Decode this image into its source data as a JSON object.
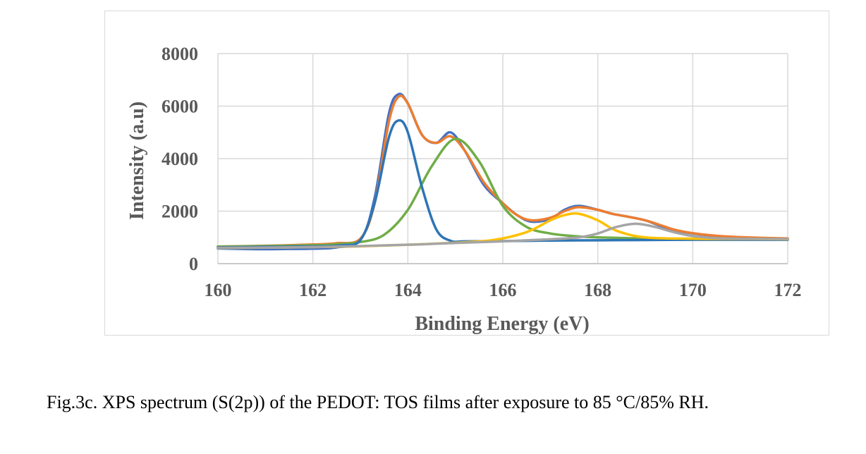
{
  "chart_data": {
    "type": "line",
    "xlabel": "Binding Energy (eV)",
    "ylabel": "Intensity (a.u)",
    "xlim": [
      160,
      172
    ],
    "ylim": [
      0,
      8000
    ],
    "x_ticks": [
      160,
      162,
      164,
      166,
      168,
      170,
      172
    ],
    "y_ticks": [
      0,
      2000,
      4000,
      6000,
      8000
    ],
    "grid": true,
    "legend": "none",
    "series": [
      {
        "color": "#4472c4",
        "x": [
          160,
          160.5,
          161,
          161.5,
          162,
          162.5,
          163,
          163.3,
          163.6,
          163.8,
          164.0,
          164.3,
          164.6,
          164.9,
          165.2,
          165.6,
          166.0,
          166.3,
          166.6,
          167.0,
          167.3,
          167.6,
          168.0,
          168.3,
          168.6,
          169.0,
          169.3,
          169.6,
          170.0,
          170.5,
          171,
          171.5,
          172
        ],
        "y": [
          580,
          560,
          550,
          560,
          570,
          620,
          900,
          2500,
          5700,
          6450,
          6100,
          4900,
          4600,
          5000,
          4300,
          3000,
          2300,
          1850,
          1600,
          1700,
          2050,
          2200,
          2050,
          1900,
          1800,
          1650,
          1450,
          1280,
          1150,
          1050,
          1000,
          970,
          950
        ]
      },
      {
        "color": "#ed7d31",
        "x": [
          160,
          161,
          162,
          162.5,
          163,
          163.3,
          163.6,
          163.8,
          164.0,
          164.3,
          164.6,
          164.9,
          165.2,
          165.6,
          166.0,
          166.3,
          166.6,
          167.0,
          167.3,
          167.6,
          168.0,
          168.3,
          168.6,
          169.0,
          169.3,
          169.6,
          170.0,
          170.5,
          171,
          171.5,
          172
        ],
        "y": [
          650,
          680,
          730,
          780,
          950,
          2300,
          5400,
          6350,
          6100,
          4900,
          4600,
          4850,
          4300,
          3100,
          2300,
          1850,
          1650,
          1750,
          2000,
          2150,
          2050,
          1900,
          1800,
          1650,
          1480,
          1300,
          1160,
          1060,
          1010,
          980,
          960
        ]
      },
      {
        "color": "#70ad47",
        "x": [
          160,
          161,
          162,
          162.5,
          163,
          163.5,
          164.0,
          164.5,
          165.0,
          165.5,
          166.0,
          166.5,
          167.0,
          167.5,
          168.0,
          169,
          170,
          171,
          172
        ],
        "y": [
          650,
          670,
          700,
          740,
          820,
          1100,
          2050,
          3700,
          4750,
          3900,
          2200,
          1400,
          1150,
          1050,
          1000,
          960,
          940,
          930,
          920
        ]
      },
      {
        "color": "#2e75b6",
        "x": [
          160,
          161,
          162,
          162.6,
          163.0,
          163.3,
          163.6,
          163.8,
          164.0,
          164.3,
          164.6,
          164.9,
          165.2,
          166,
          167,
          168,
          169,
          170,
          171,
          172
        ],
        "y": [
          620,
          640,
          660,
          700,
          900,
          2300,
          4800,
          5450,
          5000,
          2900,
          1300,
          870,
          850,
          860,
          880,
          890,
          900,
          910,
          910,
          910
        ]
      },
      {
        "color": "#ffc000",
        "x": [
          160,
          161,
          162,
          163,
          164,
          165,
          165.8,
          166.5,
          167.0,
          167.3,
          167.6,
          168.0,
          168.4,
          169,
          170,
          171,
          172
        ],
        "y": [
          600,
          610,
          630,
          660,
          720,
          800,
          900,
          1200,
          1650,
          1850,
          1900,
          1650,
          1250,
          1000,
          950,
          940,
          930
        ]
      },
      {
        "color": "#a5a5a5",
        "x": [
          160,
          162,
          164,
          165,
          166,
          167,
          167.6,
          168.0,
          168.4,
          168.8,
          169.2,
          169.6,
          170.0,
          170.5,
          171,
          172
        ],
        "y": [
          600,
          630,
          720,
          790,
          850,
          930,
          1000,
          1150,
          1400,
          1520,
          1400,
          1200,
          1050,
          970,
          950,
          940
        ]
      }
    ]
  },
  "caption": "Fig.3c. XPS spectrum (S(2p)) of the PEDOT: TOS films after exposure to 85 °C/85% RH."
}
